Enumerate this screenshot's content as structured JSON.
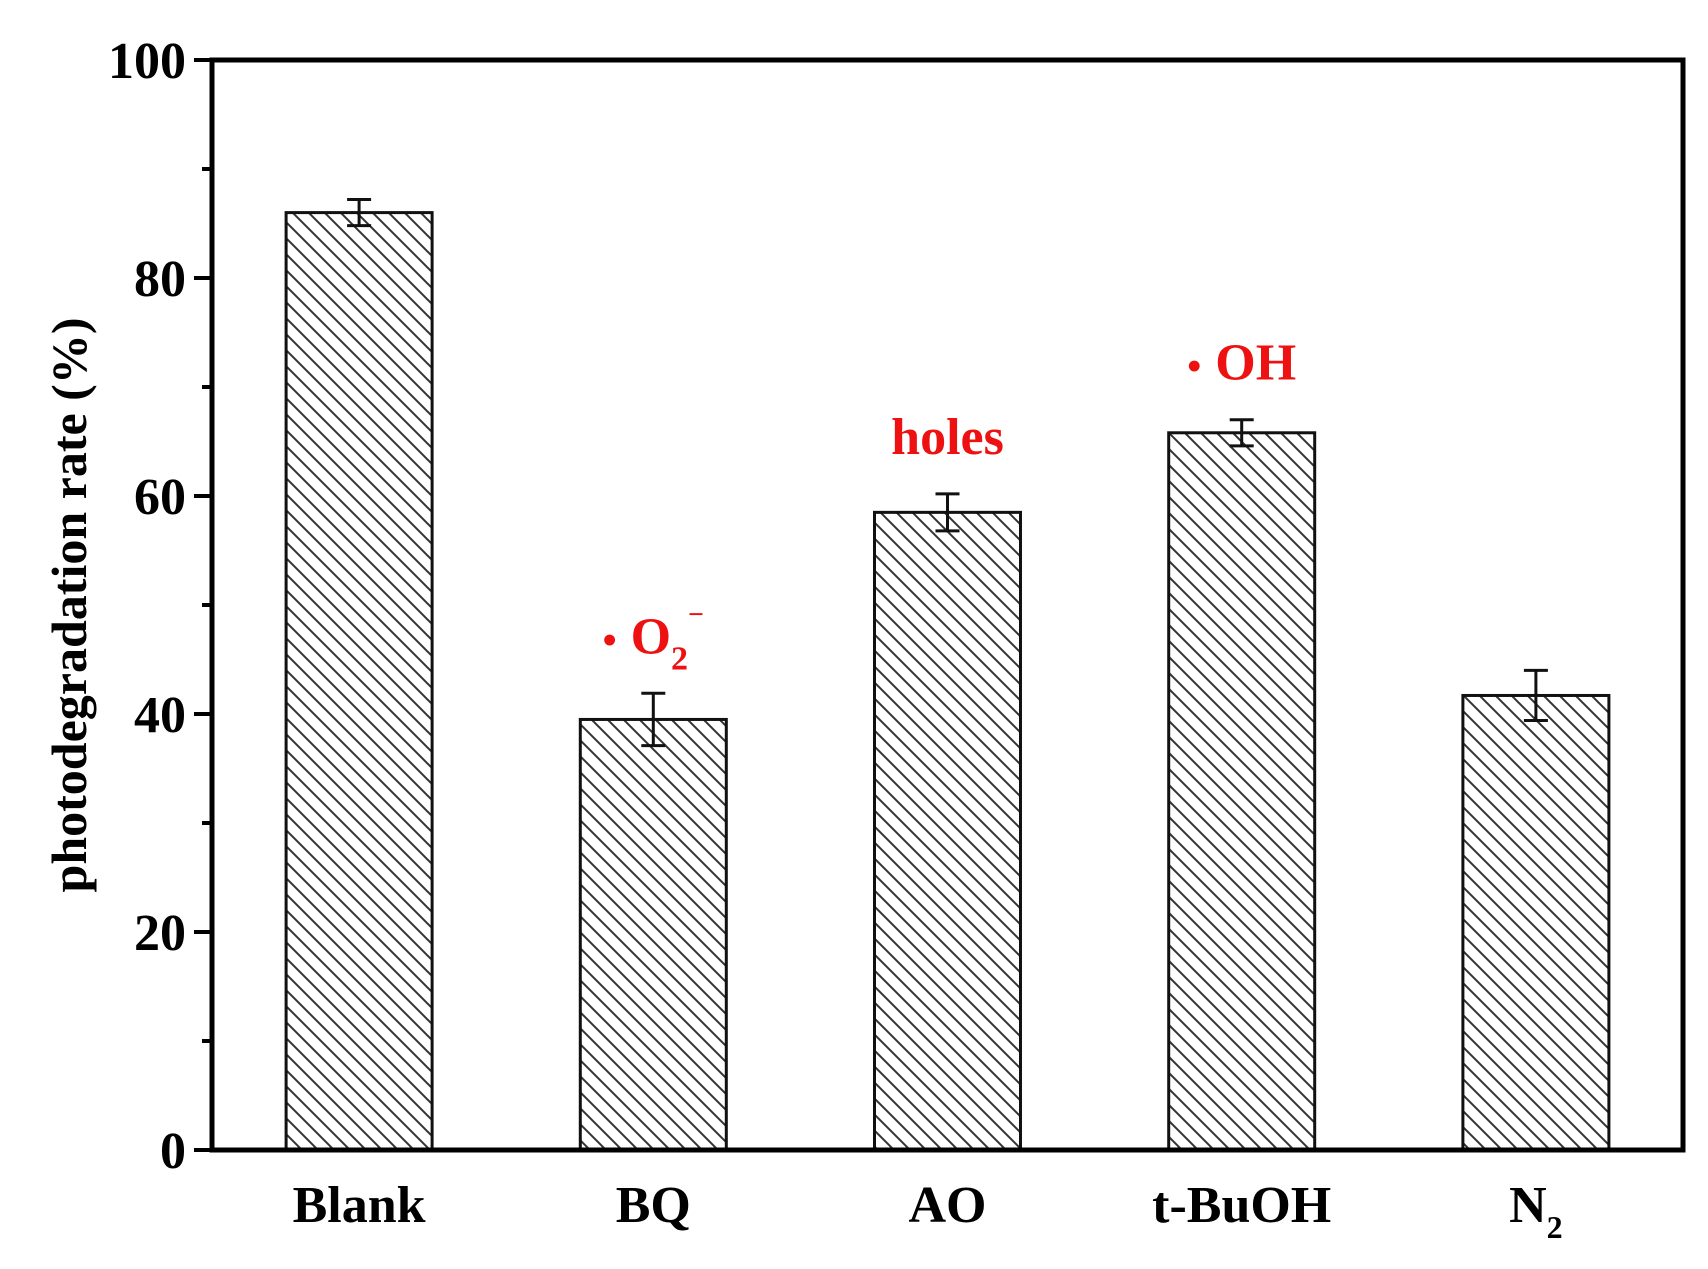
{
  "chart_data": {
    "type": "bar",
    "categories": [
      {
        "id": "blank",
        "main": "Blank",
        "sub": ""
      },
      {
        "id": "bq",
        "main": "BQ",
        "sub": ""
      },
      {
        "id": "ao",
        "main": "AO",
        "sub": ""
      },
      {
        "id": "tbuoh",
        "main": "t-BuOH",
        "sub": ""
      },
      {
        "id": "n2",
        "main": "N",
        "sub": "2"
      }
    ],
    "values": [
      86,
      39.5,
      58.5,
      65.8,
      41.7
    ],
    "errors": [
      1.2,
      2.4,
      1.7,
      1.2,
      2.3
    ],
    "ylabel": "photodegradation rate (%)",
    "xlabel": "",
    "ylim": [
      0,
      100
    ],
    "yticks": [
      0,
      20,
      40,
      60,
      80,
      100
    ],
    "yminor_step": 10,
    "bar_fill": "hatched",
    "annotations": [
      {
        "id": "o2",
        "category": "bq",
        "parts": [
          {
            "text": "•",
            "kind": "dot"
          },
          {
            "text": "O",
            "kind": "main"
          },
          {
            "text": "2",
            "kind": "sub"
          },
          {
            "text": "−",
            "kind": "sup"
          }
        ],
        "color": "#ee1111"
      },
      {
        "id": "holes",
        "category": "ao",
        "parts": [
          {
            "text": "holes",
            "kind": "main"
          }
        ],
        "color": "#ee1111"
      },
      {
        "id": "oh",
        "category": "tbuoh",
        "parts": [
          {
            "text": "•",
            "kind": "dot"
          },
          {
            "text": "OH",
            "kind": "main"
          }
        ],
        "color": "#ee1111"
      }
    ]
  },
  "colors": {
    "axis": "#000000",
    "bar_edge": "#111111",
    "hatch": "#333333",
    "annotation": "#ee1111"
  }
}
